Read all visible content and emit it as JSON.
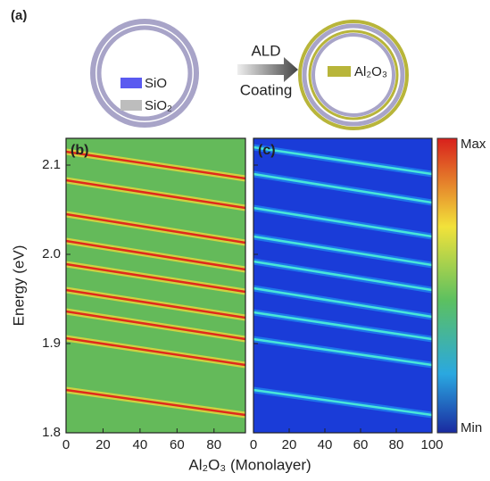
{
  "schematic": {
    "label": "(a)",
    "legend_1": "SiO",
    "legend_2": "SiO₂",
    "arrow_top": "ALD",
    "arrow_bottom": "Coating",
    "legend_3": "Al₂O₃"
  },
  "figure": {
    "ylabel": "Energy (eV)",
    "xlabel": "Al₂O₃ (Monolayer)",
    "colorbar_max": "Max",
    "colorbar_min": "Min"
  },
  "chart_data": [
    {
      "type": "heatmap-lines",
      "panel_label": "(b)",
      "background": "#64ba5a",
      "line_color": "#e02a1c",
      "glow_color": "#f3d83a",
      "xlim": [
        0,
        97
      ],
      "xticks": [
        0,
        20,
        40,
        60,
        80
      ],
      "ylim": [
        1.8,
        2.13
      ],
      "yticks": [
        {
          "value": 1.8,
          "label": "1.8"
        },
        {
          "value": 1.9,
          "label": "1.9"
        },
        {
          "value": 2,
          "label": "2.0"
        },
        {
          "value": 2.1,
          "label": "2.1"
        }
      ],
      "series": [
        {
          "x": [
            0,
            97
          ],
          "values": [
            2.115,
            2.085
          ]
        },
        {
          "x": [
            0,
            97
          ],
          "values": [
            2.083,
            2.052
          ]
        },
        {
          "x": [
            0,
            97
          ],
          "values": [
            2.045,
            2.013
          ]
        },
        {
          "x": [
            0,
            97
          ],
          "values": [
            2.015,
            1.983
          ]
        },
        {
          "x": [
            0,
            97
          ],
          "values": [
            1.989,
            1.958
          ]
        },
        {
          "x": [
            0,
            97
          ],
          "values": [
            1.96,
            1.929
          ]
        },
        {
          "x": [
            0,
            97
          ],
          "values": [
            1.936,
            1.905
          ]
        },
        {
          "x": [
            0,
            97
          ],
          "values": [
            1.906,
            1.876
          ]
        },
        {
          "x": [
            0,
            97
          ],
          "values": [
            1.848,
            1.82
          ]
        }
      ]
    },
    {
      "type": "heatmap-lines",
      "panel_label": "(c)",
      "background": "#1a3cd8",
      "line_color": "#48e6d8",
      "glow_color": "#1f8af2",
      "xlim": [
        0,
        100
      ],
      "xticks": [
        0,
        20,
        40,
        60,
        80,
        100
      ],
      "ylim": [
        1.8,
        2.13
      ],
      "yticks": [
        {
          "value": 1.8,
          "label": "1.8"
        },
        {
          "value": 1.9,
          "label": "1.9"
        },
        {
          "value": 2,
          "label": "2.0"
        },
        {
          "value": 2.1,
          "label": "2.1"
        }
      ],
      "series": [
        {
          "x": [
            0,
            100
          ],
          "values": [
            2.12,
            2.09
          ]
        },
        {
          "x": [
            0,
            100
          ],
          "values": [
            2.09,
            2.058
          ]
        },
        {
          "x": [
            0,
            100
          ],
          "values": [
            2.052,
            2.02
          ]
        },
        {
          "x": [
            0,
            100
          ],
          "values": [
            2.02,
            1.988
          ]
        },
        {
          "x": [
            0,
            100
          ],
          "values": [
            1.992,
            1.96
          ]
        },
        {
          "x": [
            0,
            100
          ],
          "values": [
            1.962,
            1.93
          ]
        },
        {
          "x": [
            0,
            100
          ],
          "values": [
            1.935,
            1.905
          ]
        },
        {
          "x": [
            0,
            100
          ],
          "values": [
            1.905,
            1.876
          ]
        },
        {
          "x": [
            0,
            100
          ],
          "values": [
            1.848,
            1.82
          ]
        }
      ]
    }
  ]
}
